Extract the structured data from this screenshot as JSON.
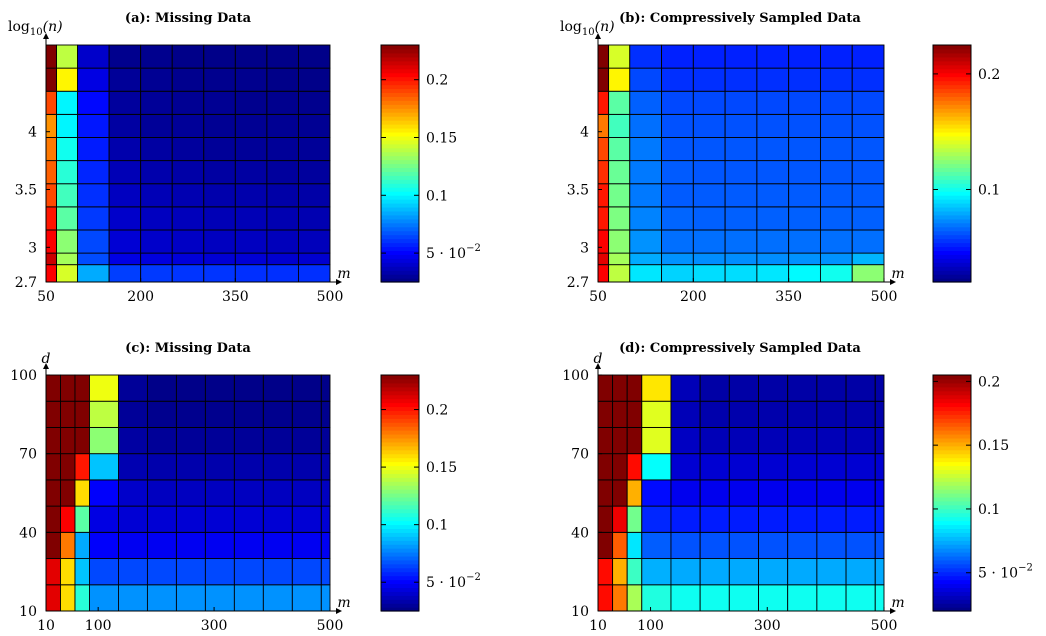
{
  "chart_data": [
    {
      "id": "a",
      "type": "heatmap",
      "title": "(a): Missing Data",
      "xlabel": "m",
      "ylabel": "log10(n)",
      "ylabel_parts": {
        "base": "log",
        "sub": "10",
        "arg": "(n)"
      },
      "x_ticks": [
        50,
        200,
        350,
        500
      ],
      "y_ticks": [
        2.7,
        3,
        3.5,
        4
      ],
      "x_edges": [
        50,
        66.7,
        100,
        150,
        200,
        250,
        300,
        350,
        400,
        450,
        500
      ],
      "y_edges": [
        2.7,
        2.85,
        2.95,
        3.15,
        3.35,
        3.55,
        3.75,
        3.95,
        4.15,
        4.35,
        4.55,
        4.75
      ],
      "colorbar": {
        "min": 0.025,
        "max": 0.23,
        "ticks": [
          0.05,
          0.1,
          0.15,
          0.2
        ],
        "labels": [
          "5 · 10",
          "0.1",
          "0.15",
          "0.2"
        ],
        "exp": "−2",
        "exp_on": 0
      },
      "values": [
        [
          0.205,
          0.145,
          0.085,
          0.063,
          0.062,
          0.061,
          0.061,
          0.06,
          0.06,
          0.06
        ],
        [
          0.215,
          0.135,
          0.066,
          0.045,
          0.044,
          0.043,
          0.042,
          0.042,
          0.041,
          0.041
        ],
        [
          0.205,
          0.13,
          0.065,
          0.042,
          0.04,
          0.039,
          0.038,
          0.038,
          0.037,
          0.037
        ],
        [
          0.2,
          0.12,
          0.062,
          0.04,
          0.038,
          0.037,
          0.036,
          0.036,
          0.035,
          0.035
        ],
        [
          0.19,
          0.115,
          0.06,
          0.038,
          0.036,
          0.035,
          0.034,
          0.034,
          0.033,
          0.033
        ],
        [
          0.185,
          0.11,
          0.058,
          0.036,
          0.034,
          0.033,
          0.032,
          0.032,
          0.031,
          0.031
        ],
        [
          0.18,
          0.105,
          0.056,
          0.034,
          0.032,
          0.031,
          0.03,
          0.03,
          0.03,
          0.03
        ],
        [
          0.175,
          0.1,
          0.055,
          0.032,
          0.03,
          0.03,
          0.029,
          0.029,
          0.029,
          0.029
        ],
        [
          0.19,
          0.1,
          0.052,
          0.031,
          0.03,
          0.029,
          0.029,
          0.028,
          0.028,
          0.028
        ],
        [
          0.23,
          0.155,
          0.045,
          0.03,
          0.029,
          0.028,
          0.028,
          0.028,
          0.027,
          0.027
        ],
        [
          0.23,
          0.14,
          0.04,
          0.028,
          0.028,
          0.027,
          0.027,
          0.027,
          0.027,
          0.027
        ]
      ]
    },
    {
      "id": "b",
      "type": "heatmap",
      "title": "(b): Compressively Sampled Data",
      "xlabel": "m",
      "ylabel": "log10(n)",
      "ylabel_parts": {
        "base": "log",
        "sub": "10",
        "arg": "(n)"
      },
      "x_ticks": [
        50,
        200,
        350,
        500
      ],
      "y_ticks": [
        2.7,
        3,
        3.5,
        4
      ],
      "x_edges": [
        50,
        66.7,
        100,
        150,
        200,
        250,
        300,
        350,
        400,
        450,
        500
      ],
      "y_edges": [
        2.7,
        2.85,
        2.95,
        3.15,
        3.35,
        3.55,
        3.75,
        3.95,
        4.15,
        4.35,
        4.55,
        4.75
      ],
      "colorbar": {
        "min": 0.02,
        "max": 0.225,
        "ticks": [
          0.1,
          0.2
        ],
        "labels": [
          "0.1",
          "0.2"
        ]
      },
      "values": [
        [
          0.2,
          0.135,
          0.092,
          0.088,
          0.09,
          0.09,
          0.092,
          0.096,
          0.1,
          0.125
        ],
        [
          0.205,
          0.13,
          0.08,
          0.075,
          0.074,
          0.074,
          0.074,
          0.075,
          0.075,
          0.082
        ],
        [
          0.2,
          0.125,
          0.075,
          0.068,
          0.068,
          0.068,
          0.068,
          0.068,
          0.068,
          0.068
        ],
        [
          0.195,
          0.122,
          0.072,
          0.066,
          0.065,
          0.065,
          0.065,
          0.065,
          0.065,
          0.065
        ],
        [
          0.195,
          0.12,
          0.07,
          0.064,
          0.064,
          0.064,
          0.064,
          0.064,
          0.064,
          0.064
        ],
        [
          0.19,
          0.118,
          0.07,
          0.064,
          0.063,
          0.063,
          0.063,
          0.063,
          0.063,
          0.063
        ],
        [
          0.185,
          0.115,
          0.07,
          0.063,
          0.063,
          0.063,
          0.063,
          0.063,
          0.063,
          0.063
        ],
        [
          0.175,
          0.11,
          0.068,
          0.062,
          0.062,
          0.062,
          0.062,
          0.062,
          0.062,
          0.062
        ],
        [
          0.195,
          0.115,
          0.065,
          0.06,
          0.06,
          0.06,
          0.06,
          0.06,
          0.06,
          0.06
        ],
        [
          0.225,
          0.15,
          0.06,
          0.055,
          0.055,
          0.055,
          0.055,
          0.055,
          0.055,
          0.055
        ],
        [
          0.225,
          0.14,
          0.055,
          0.052,
          0.052,
          0.052,
          0.052,
          0.052,
          0.052,
          0.052
        ]
      ]
    },
    {
      "id": "c",
      "type": "heatmap",
      "title": "(c): Missing Data",
      "xlabel": "m",
      "ylabel": "d",
      "x_ticks": [
        10,
        100,
        300,
        500
      ],
      "y_ticks": [
        10,
        40,
        70,
        100
      ],
      "x_edges": [
        10,
        35,
        60,
        85,
        135,
        185,
        235,
        285,
        335,
        385,
        435,
        485,
        500
      ],
      "y_edges": [
        10,
        20,
        30,
        40,
        50,
        60,
        70,
        80,
        90,
        100
      ],
      "colorbar": {
        "min": 0.025,
        "max": 0.23,
        "ticks": [
          0.05,
          0.1,
          0.15,
          0.2
        ],
        "labels": [
          "5 · 10",
          "0.1",
          "0.15",
          "0.2"
        ],
        "exp": "−2",
        "exp_on": 0
      },
      "values": [
        [
          0.21,
          0.16,
          0.11,
          0.08,
          0.08,
          0.08,
          0.08,
          0.08,
          0.08,
          0.08,
          0.08,
          0.08
        ],
        [
          0.21,
          0.16,
          0.09,
          0.065,
          0.065,
          0.065,
          0.065,
          0.065,
          0.065,
          0.065,
          0.065,
          0.065
        ],
        [
          0.23,
          0.18,
          0.085,
          0.05,
          0.048,
          0.048,
          0.048,
          0.048,
          0.048,
          0.048,
          0.048,
          0.048
        ],
        [
          0.23,
          0.205,
          0.12,
          0.045,
          0.042,
          0.042,
          0.042,
          0.042,
          0.042,
          0.042,
          0.042,
          0.042
        ],
        [
          0.23,
          0.23,
          0.16,
          0.05,
          0.04,
          0.038,
          0.038,
          0.038,
          0.038,
          0.038,
          0.038,
          0.038
        ],
        [
          0.23,
          0.23,
          0.2,
          0.09,
          0.035,
          0.034,
          0.034,
          0.034,
          0.034,
          0.034,
          0.034,
          0.034
        ],
        [
          0.23,
          0.23,
          0.23,
          0.13,
          0.032,
          0.03,
          0.03,
          0.03,
          0.03,
          0.03,
          0.03,
          0.03
        ],
        [
          0.23,
          0.23,
          0.23,
          0.14,
          0.03,
          0.028,
          0.028,
          0.028,
          0.028,
          0.028,
          0.028,
          0.028
        ],
        [
          0.23,
          0.23,
          0.23,
          0.15,
          0.03,
          0.027,
          0.027,
          0.027,
          0.027,
          0.027,
          0.027,
          0.027
        ]
      ]
    },
    {
      "id": "d",
      "type": "heatmap",
      "title": "(d): Compressively Sampled Data",
      "xlabel": "m",
      "ylabel": "d",
      "x_ticks": [
        10,
        100,
        300,
        500
      ],
      "y_ticks": [
        10,
        40,
        70,
        100
      ],
      "x_edges": [
        10,
        35,
        60,
        85,
        135,
        185,
        235,
        285,
        335,
        385,
        435,
        485,
        500
      ],
      "y_edges": [
        10,
        20,
        30,
        40,
        50,
        60,
        70,
        80,
        90,
        100
      ],
      "colorbar": {
        "min": 0.02,
        "max": 0.205,
        "ticks": [
          0.05,
          0.1,
          0.15,
          0.2
        ],
        "labels": [
          "5 · 10",
          "0.1",
          "0.15",
          "0.2"
        ],
        "exp": "−2",
        "exp_on": 0
      },
      "values": [
        [
          0.18,
          0.16,
          0.12,
          0.095,
          0.092,
          0.092,
          0.092,
          0.092,
          0.092,
          0.092,
          0.092,
          0.092
        ],
        [
          0.18,
          0.15,
          0.1,
          0.075,
          0.074,
          0.074,
          0.074,
          0.074,
          0.074,
          0.074,
          0.074,
          0.074
        ],
        [
          0.205,
          0.165,
          0.085,
          0.06,
          0.058,
          0.058,
          0.058,
          0.058,
          0.058,
          0.058,
          0.058,
          0.058
        ],
        [
          0.205,
          0.185,
          0.11,
          0.05,
          0.048,
          0.048,
          0.048,
          0.048,
          0.048,
          0.048,
          0.048,
          0.048
        ],
        [
          0.205,
          0.205,
          0.15,
          0.045,
          0.04,
          0.04,
          0.04,
          0.04,
          0.04,
          0.04,
          0.04,
          0.04
        ],
        [
          0.205,
          0.205,
          0.18,
          0.09,
          0.035,
          0.035,
          0.035,
          0.035,
          0.035,
          0.035,
          0.035,
          0.035
        ],
        [
          0.205,
          0.205,
          0.205,
          0.13,
          0.032,
          0.03,
          0.03,
          0.03,
          0.03,
          0.03,
          0.03,
          0.03
        ],
        [
          0.205,
          0.205,
          0.205,
          0.13,
          0.03,
          0.028,
          0.028,
          0.028,
          0.028,
          0.028,
          0.028,
          0.028
        ],
        [
          0.205,
          0.205,
          0.205,
          0.14,
          0.03,
          0.027,
          0.027,
          0.027,
          0.027,
          0.027,
          0.027,
          0.027
        ]
      ]
    }
  ]
}
